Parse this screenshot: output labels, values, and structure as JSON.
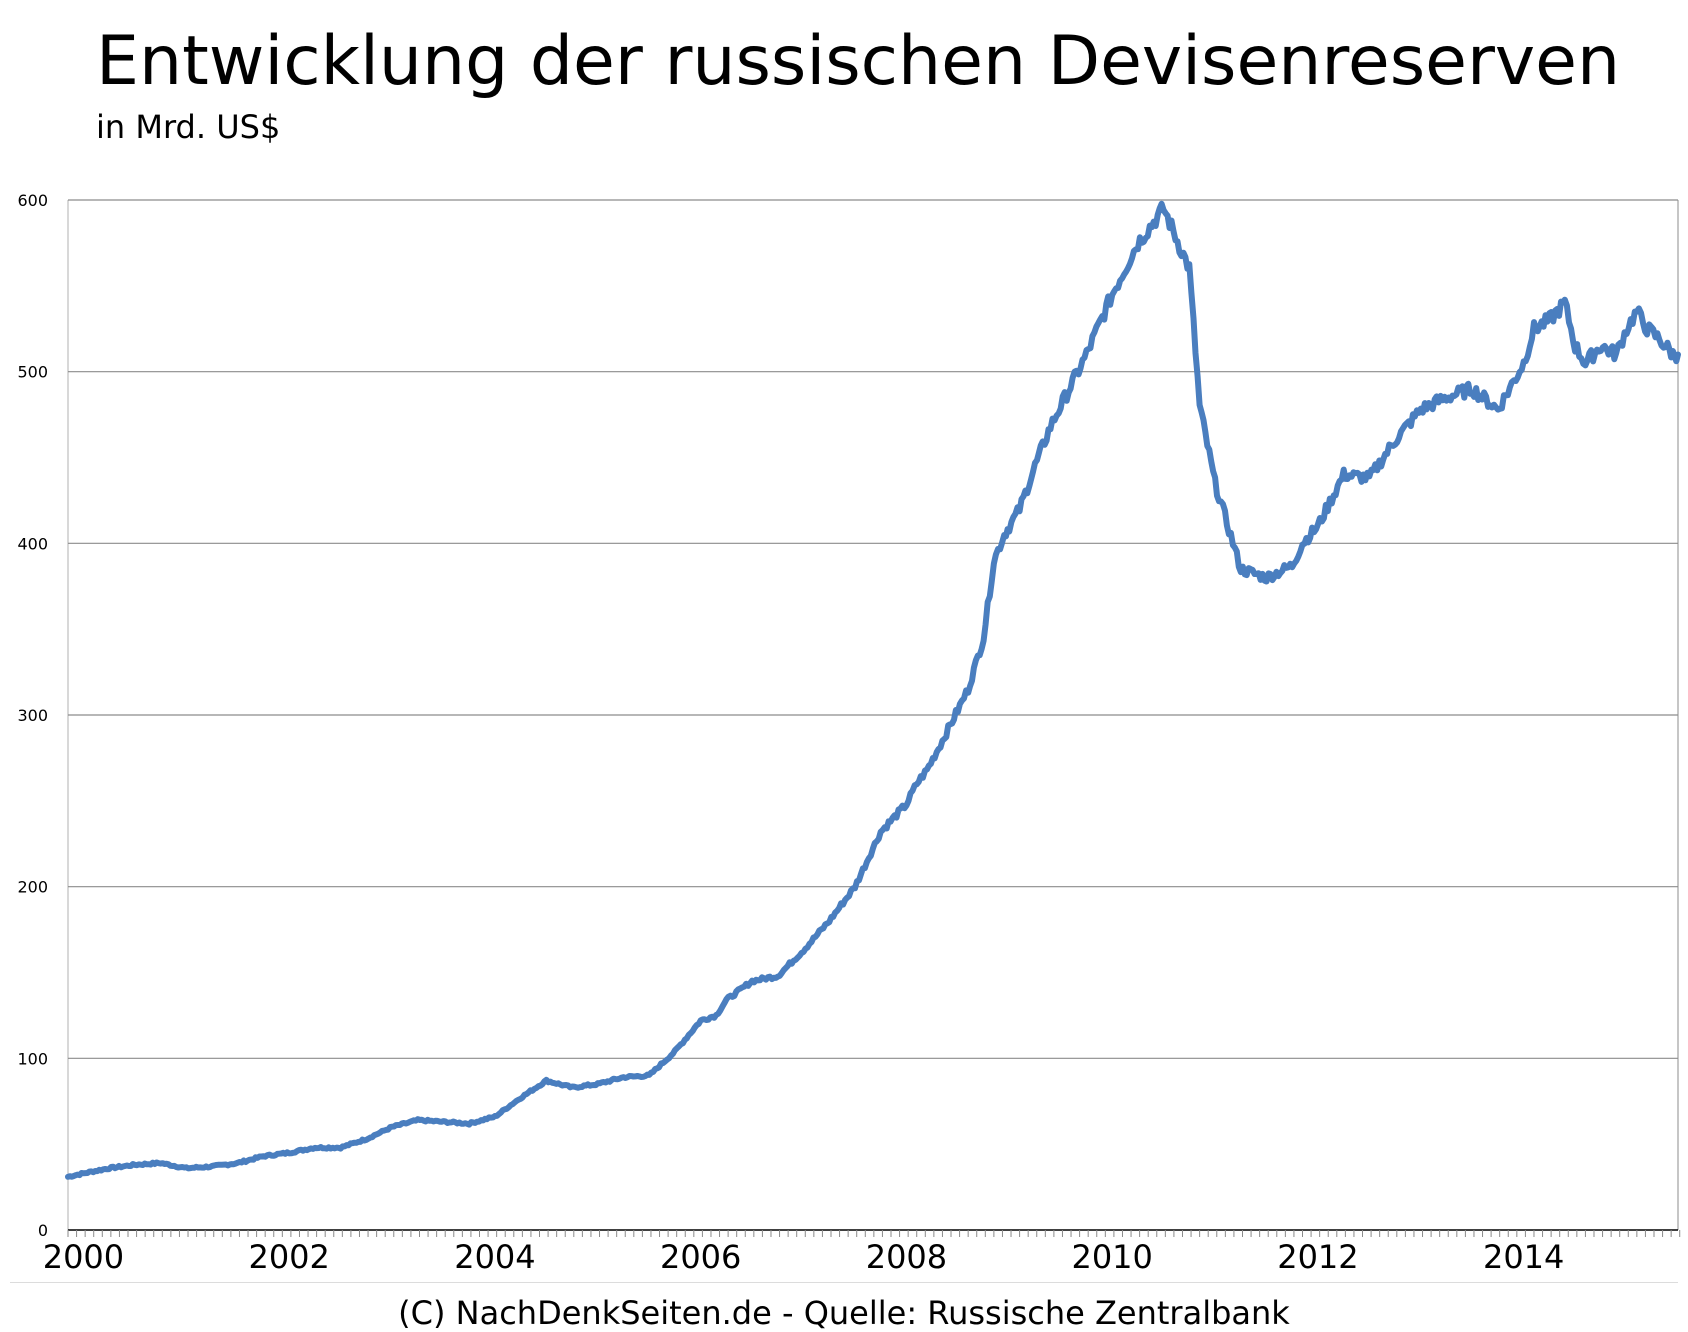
{
  "title": "Entwicklung der russischen Devisenreserven",
  "subtitle": "in Mrd. US$",
  "footer": "(C) NachDenkSeiten.de - Quelle: Russische Zentralbank",
  "colors": {
    "line": "#4a7ebf",
    "grid": "#8c8c8c",
    "axis": "#000000",
    "background": "#ffffff"
  },
  "chart_data": {
    "type": "line",
    "title": "Entwicklung der russischen Devisenreserven",
    "subtitle": "in Mrd. US$",
    "xlabel": "",
    "ylabel": "",
    "xlim": [
      1999.85,
      2015.5
    ],
    "ylim": [
      0,
      600
    ],
    "yticks": [
      0,
      100,
      200,
      300,
      400,
      500,
      600
    ],
    "xticks": [
      2000,
      2002,
      2004,
      2006,
      2008,
      2010,
      2012,
      2014
    ],
    "grid": true,
    "legend": "none",
    "series": [
      {
        "x": [
          1999.85,
          2000.0,
          2000.25,
          2000.5,
          2000.75,
          2001.0,
          2001.25,
          2001.5,
          2001.75,
          2002.0,
          2002.25,
          2002.5,
          2002.75,
          2003.0,
          2003.25,
          2003.5,
          2003.75,
          2004.0,
          2004.25,
          2004.5,
          2004.75,
          2005.0,
          2005.25,
          2005.5,
          2005.75,
          2006.0,
          2006.15,
          2006.25,
          2006.5,
          2006.75,
          2007.0,
          2007.25,
          2007.5,
          2007.75,
          2008.0,
          2008.1,
          2008.2,
          2008.35,
          2008.5,
          2008.6,
          2008.75,
          2008.85,
          2008.95,
          2009.0,
          2009.1,
          2009.25,
          2009.4,
          2009.5,
          2009.75,
          2010.0,
          2010.25,
          2010.5,
          2010.75,
          2010.85,
          2011.0,
          2011.25,
          2011.5,
          2011.75,
          2011.85,
          2012.0,
          2012.25,
          2012.5,
          2012.75,
          2013.0,
          2013.25,
          2013.5,
          2013.75,
          2014.0,
          2014.1,
          2014.25,
          2014.4,
          2014.5,
          2014.6,
          2014.75,
          2014.9,
          2015.0,
          2015.1,
          2015.2,
          2015.3,
          2015.38,
          2015.45,
          2015.5
        ],
        "values": [
          31,
          33,
          36,
          38,
          39,
          36,
          37,
          39,
          43,
          45,
          48,
          48,
          53,
          60,
          64,
          63,
          62,
          66,
          77,
          87,
          83,
          85,
          89,
          90,
          104,
          122,
          125,
          134,
          145,
          148,
          163,
          180,
          200,
          232,
          248,
          260,
          268,
          285,
          303,
          315,
          345,
          390,
          405,
          410,
          420,
          445,
          468,
          480,
          510,
          545,
          575,
          595,
          560,
          480,
          435,
          385,
          380,
          387,
          400,
          410,
          440,
          438,
          460,
          478,
          485,
          490,
          478,
          505,
          525,
          530,
          540,
          515,
          505,
          515,
          510,
          525,
          535,
          525,
          520,
          515,
          510,
          510
        ]
      }
    ]
  }
}
